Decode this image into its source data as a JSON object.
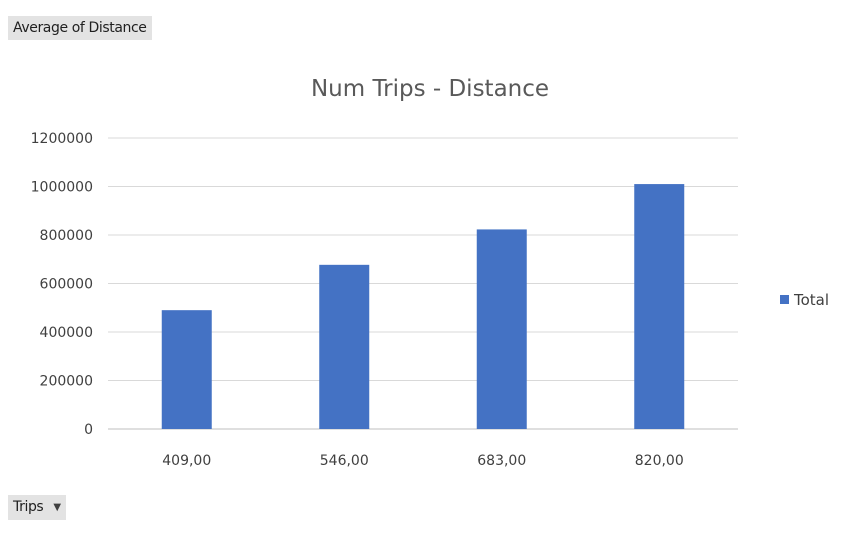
{
  "value_field": {
    "label": "Average of Distance"
  },
  "axis_field": {
    "label": "Trips"
  },
  "colors": {
    "bar": "#4472c4",
    "grid": "#d9d9d9",
    "axis": "#bfbfbf"
  },
  "chart_data": {
    "type": "bar",
    "title": "Num Trips - Distance",
    "categories": [
      "409,00",
      "546,00",
      "683,00",
      "820,00"
    ],
    "series": [
      {
        "name": "Total",
        "values": [
          490000,
          677000,
          823000,
          1010000
        ]
      }
    ],
    "ylim": [
      0,
      1200000
    ],
    "yticks": [
      0,
      200000,
      400000,
      600000,
      800000,
      1000000,
      1200000
    ],
    "grid": true,
    "legend": "right"
  }
}
